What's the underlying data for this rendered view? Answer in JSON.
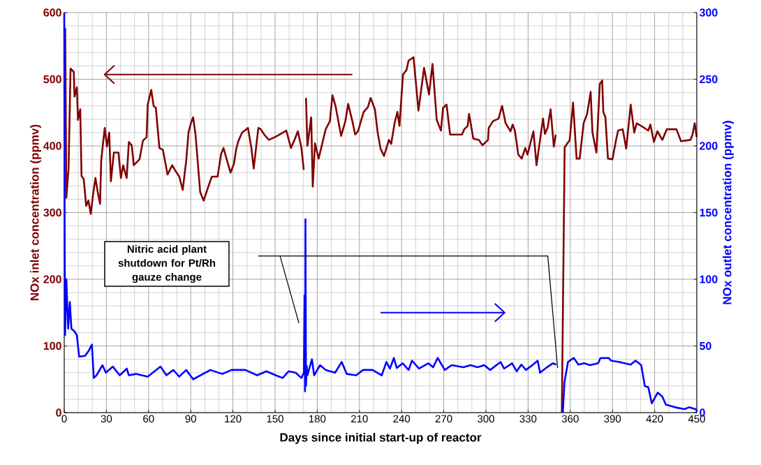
{
  "chart_data": {
    "type": "line",
    "xlabel": "Days since initial start-up of reactor",
    "ylabel": "NOx inlet concentration (ppmv)",
    "y2label": "NOx outlet concentration (ppmv)",
    "annotations": [
      "Nitric acid plant shutdown for Pt/Rh gauze change"
    ],
    "xlim": [
      0,
      450
    ],
    "xticks": [
      0,
      30,
      60,
      90,
      120,
      150,
      180,
      210,
      240,
      270,
      300,
      330,
      360,
      390,
      420,
      450
    ],
    "ylim": [
      0,
      600
    ],
    "yticks": [
      0,
      100,
      200,
      300,
      400,
      500,
      600
    ],
    "y2lim": [
      0,
      300
    ],
    "y2ticks": [
      0,
      50,
      100,
      150,
      200,
      250,
      300
    ],
    "grid": true,
    "series": [
      {
        "color": "#800000",
        "x": [
          0.7,
          1.5,
          3.1,
          4.5,
          6.8,
          7.3,
          9,
          9.8,
          11.4,
          12.3,
          13.9,
          15.6,
          17.2,
          18.9,
          20.5,
          22.2,
          23.8,
          25.5,
          26.3,
          28.8,
          30.4,
          32,
          33.2,
          35.3,
          38.6,
          40.3,
          41.9,
          44.4,
          46,
          48,
          49.5,
          53.6,
          56,
          58.6,
          59.4,
          61.9,
          63.6,
          65.2,
          67.7,
          70.2,
          73.5,
          76.8,
          79.3,
          81.8,
          84.3,
          86.8,
          88.4,
          90.1,
          91.7,
          93.4,
          96.7,
          99.2,
          102.5,
          105,
          109.1,
          111.6,
          113.3,
          114.9,
          118.3,
          120.7,
          122.4,
          124,
          126.5,
          130.7,
          133.2,
          134.8,
          138.1,
          139.8,
          142.3,
          145.6,
          150.6,
          153.9,
          158,
          161.3,
          164,
          166.2,
          168.7,
          170.4,
          171.5,
          172,
          173,
          175.7,
          176.8,
          178.4,
          181,
          186,
          189,
          190.8,
          193,
          197,
          200,
          202,
          205,
          207,
          209,
          213,
          216,
          218,
          221,
          223,
          225,
          227.5,
          231,
          232.6,
          235,
          237,
          238.5,
          241,
          243.5,
          245,
          248.5,
          252,
          256,
          259.5,
          262,
          265,
          268,
          269.5,
          272,
          274.5,
          283,
          284.6,
          287,
          288,
          291,
          295,
          297.5,
          301.5,
          302,
          305,
          309,
          311.5,
          314,
          317.5,
          319,
          320.6,
          323,
          325.5,
          328,
          329.6,
          333.8,
          336,
          340.6,
          342,
          344,
          346,
          348.3,
          349.7,
          352,
          354,
          356,
          359.6,
          362,
          364.5,
          366.7,
          369.5,
          372,
          374.5,
          375.8,
          378.6,
          381,
          382.7,
          383.5,
          385,
          386.8,
          390,
          392.6,
          394,
          397.3,
          399.8,
          403,
          405.5,
          407.3,
          412,
          415.5,
          417,
          419.5,
          422,
          425.5,
          428.7,
          435.5,
          438.8,
          445.5,
          447,
          448.5,
          450
        ],
        "values": [
          577,
          322,
          367,
          516,
          511,
          474,
          488,
          439,
          455,
          355,
          350,
          310,
          318,
          298,
          327,
          352,
          331,
          313,
          378,
          427,
          399,
          420,
          347,
          390,
          390,
          352,
          371,
          352,
          406,
          401,
          371,
          380,
          408,
          413,
          462,
          484,
          460,
          457,
          397,
          394,
          357,
          371,
          362,
          354,
          334,
          378,
          420,
          434,
          443,
          417,
          331,
          318,
          339,
          354,
          354,
          388,
          397,
          385,
          360,
          373,
          396,
          408,
          420,
          427,
          396,
          366,
          427,
          425,
          417,
          409,
          414,
          418,
          423,
          397,
          410,
          422,
          398,
          364,
          null,
          472,
          400,
          443,
          339,
          404,
          381,
          425,
          437,
          476,
          460,
          415,
          437,
          463,
          437,
          417,
          422,
          451,
          458,
          472,
          455,
          420,
          396,
          385,
          409,
          403,
          434,
          451,
          430,
          507,
          514,
          528,
          533,
          453,
          517,
          477,
          523,
          439,
          423,
          457,
          462,
          417,
          417,
          425,
          430,
          448,
          411,
          409,
          401,
          409,
          427,
          437,
          441,
          460,
          434,
          422,
          432,
          423,
          387,
          381,
          397,
          387,
          422,
          371,
          441,
          418,
          428,
          455,
          399,
          417,
          null,
          0,
          398,
          409,
          465,
          381,
          381,
          434,
          448,
          481,
          420,
          390,
          493,
          498,
          451,
          443,
          381,
          380,
          409,
          423,
          425,
          396,
          462,
          420,
          434,
          428,
          423,
          432,
          406,
          422,
          409,
          425,
          425,
          407,
          409,
          417,
          434,
          413
        ]
      },
      {
        "color": "#0000ff",
        "axis": "y2",
        "x": [
          0,
          0.3,
          0.6,
          1.5,
          2.8,
          4,
          5.1,
          7.3,
          9,
          10.6,
          14.7,
          17.2,
          19.7,
          21,
          23,
          27.2,
          29.6,
          34.6,
          39.5,
          44.5,
          46,
          51,
          59.4,
          68.5,
          72.7,
          77.6,
          81.8,
          86.8,
          91.7,
          104,
          112.4,
          119,
          128.9,
          137.2,
          143.8,
          150.5,
          155.4,
          159.6,
          164.6,
          168.7,
          170.5,
          171,
          171.3,
          171.6,
          172,
          172.5,
          173,
          176.2,
          177.8,
          182,
          186,
          192.7,
          197.4,
          201,
          207.7,
          212.6,
          219.3,
          225.9,
          229.2,
          231.7,
          234.5,
          236.6,
          240.8,
          245,
          247.4,
          252.4,
          259,
          262.4,
          265.7,
          270.7,
          275.6,
          284,
          289,
          294,
          298.8,
          303,
          310.4,
          312.9,
          318.6,
          321.9,
          325.2,
          328.5,
          333.5,
          336.8,
          338.5,
          343.4,
          347.6,
          350,
          352,
          354.7,
          355.9,
          358.4,
          362.5,
          365.8,
          370,
          374,
          379.8,
          381.5,
          387.3,
          389,
          394.8,
          403,
          406.4,
          410.5,
          413,
          415.5,
          418,
          422.2,
          425.5,
          428,
          434.6,
          441.2,
          444.5,
          449.5,
          450
        ],
        "values": [
          300,
          137,
          58,
          100,
          63,
          83,
          63,
          61,
          58,
          42,
          42.5,
          46,
          51,
          26,
          28,
          35.6,
          30,
          34.5,
          28,
          33,
          28,
          29,
          27,
          34.5,
          28,
          32,
          27,
          32,
          25,
          32,
          29,
          32,
          32,
          28,
          31,
          28,
          26,
          31,
          30,
          26,
          30,
          88,
          16,
          145,
          20,
          35,
          28,
          40,
          28,
          35.6,
          32,
          30,
          38,
          29,
          28,
          32,
          32,
          28,
          38,
          33,
          41,
          33.5,
          37,
          32,
          39,
          33,
          37,
          34,
          41,
          32,
          35.6,
          34,
          35.6,
          34,
          35.6,
          32,
          38,
          33,
          37,
          31,
          36,
          32,
          36,
          39,
          30,
          34,
          37,
          36,
          null,
          0,
          23,
          38,
          41,
          36,
          37,
          35.6,
          37,
          41,
          41,
          39,
          38,
          36,
          39,
          35.6,
          20,
          19,
          7,
          15,
          12,
          6,
          4,
          2.6,
          4,
          2.5,
          0.5
        ]
      }
    ]
  }
}
